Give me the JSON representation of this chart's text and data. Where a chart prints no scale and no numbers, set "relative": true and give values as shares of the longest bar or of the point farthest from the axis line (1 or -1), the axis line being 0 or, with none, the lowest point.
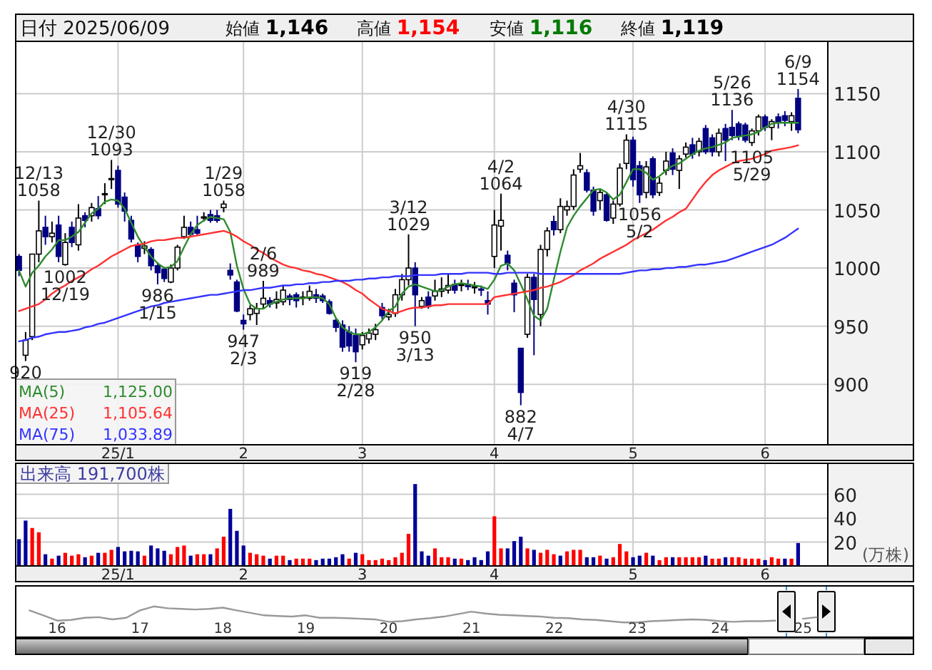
{
  "chart_data": [
    {
      "type": "candlestick",
      "title": "日付 2025/06/09",
      "categories": [
        null,
        null,
        null,
        null,
        null,
        null,
        null,
        null,
        null,
        null,
        null,
        null,
        null,
        null,
        null,
        "25/1",
        null,
        null,
        null,
        null,
        null,
        null,
        null,
        null,
        null,
        null,
        null,
        null,
        null,
        null,
        null,
        null,
        null,
        null,
        "2",
        null,
        null,
        null,
        null,
        null,
        null,
        null,
        null,
        null,
        null,
        null,
        null,
        null,
        null,
        null,
        null,
        null,
        "3",
        null,
        null,
        null,
        null,
        null,
        null,
        null,
        null,
        null,
        null,
        null,
        null,
        null,
        null,
        null,
        null,
        null,
        null,
        null,
        "4",
        null,
        null,
        null,
        null,
        null,
        null,
        null,
        null,
        null,
        null,
        null,
        null,
        null,
        null,
        null,
        null,
        null,
        null,
        null,
        null,
        "5",
        null,
        null,
        null,
        null,
        null,
        null,
        null,
        null,
        null,
        null,
        null,
        null,
        null,
        null,
        null,
        null,
        null,
        null,
        null,
        "6",
        null,
        null,
        null,
        null,
        null,
        null,
        null,
        null,
        null
      ],
      "ohlc": [
        [
          1010,
          1012,
          993,
          998
        ],
        [
          925,
          945,
          920,
          938
        ],
        [
          941,
          1012,
          938,
          1012
        ],
        [
          1012,
          1058,
          1005,
          1032
        ],
        [
          1035,
          1045,
          1020,
          1027
        ],
        [
          1027,
          1040,
          1022,
          1030
        ],
        [
          1037,
          1045,
          1005,
          1010
        ],
        [
          1003,
          1030,
          1002,
          1022
        ],
        [
          1035,
          1040,
          1018,
          1022
        ],
        [
          1020,
          1055,
          1015,
          1043
        ],
        [
          1045,
          1048,
          1035,
          1041
        ],
        [
          1045,
          1056,
          1040,
          1052
        ],
        [
          1051,
          1062,
          1042,
          1045
        ],
        [
          1063,
          1073,
          1055,
          1064
        ],
        [
          1076,
          1093,
          1068,
          1077
        ],
        [
          1084,
          1088,
          1052,
          1055
        ],
        [
          1061,
          1065,
          1040,
          1049
        ],
        [
          1041,
          1045,
          1022,
          1025
        ],
        [
          1020,
          1022,
          1005,
          1010
        ],
        [
          1017,
          1023,
          1012,
          1019
        ],
        [
          1016,
          1018,
          998,
          1002
        ],
        [
          1002,
          1005,
          986,
          996
        ],
        [
          999,
          1001,
          988,
          991
        ],
        [
          988,
          1003,
          987,
          1000
        ],
        [
          1000,
          1020,
          998,
          1018
        ],
        [
          1027,
          1045,
          1025,
          1035
        ],
        [
          1035,
          1040,
          1027,
          1029
        ],
        [
          1033,
          1045,
          1028,
          1030
        ],
        [
          1043,
          1048,
          1040,
          1044
        ],
        [
          1046,
          1050,
          1039,
          1041
        ],
        [
          1045,
          1050,
          1039,
          1041
        ],
        [
          1052,
          1058,
          1048,
          1055
        ],
        [
          998,
          1004,
          990,
          994
        ],
        [
          988,
          990,
          962,
          963
        ],
        [
          955,
          960,
          947,
          952
        ],
        [
          960,
          968,
          955,
          965
        ],
        [
          961,
          970,
          951,
          965
        ],
        [
          969,
          989,
          965,
          974
        ],
        [
          972,
          975,
          966,
          969
        ],
        [
          970,
          980,
          965,
          973
        ],
        [
          971,
          985,
          968,
          981
        ],
        [
          976,
          978,
          968,
          973
        ],
        [
          977,
          979,
          966,
          972
        ],
        [
          974,
          980,
          968,
          975
        ],
        [
          974,
          985,
          972,
          980
        ],
        [
          977,
          982,
          970,
          974
        ],
        [
          976,
          978,
          970,
          972
        ],
        [
          971,
          973,
          960,
          961
        ],
        [
          955,
          957,
          945,
          949
        ],
        [
          951,
          955,
          928,
          932
        ],
        [
          945,
          950,
          928,
          933
        ],
        [
          942,
          948,
          919,
          928
        ],
        [
          934,
          945,
          930,
          942
        ],
        [
          939,
          948,
          935,
          944
        ],
        [
          943,
          952,
          938,
          947
        ],
        [
          966,
          970,
          956,
          959
        ],
        [
          958,
          965,
          955,
          960
        ],
        [
          961,
          982,
          958,
          977
        ],
        [
          977,
          995,
          972,
          990
        ],
        [
          990,
          1029,
          985,
          1000
        ],
        [
          1000,
          1005,
          950,
          977
        ],
        [
          967,
          975,
          965,
          972
        ],
        [
          975,
          980,
          965,
          967
        ],
        [
          976,
          990,
          972,
          980
        ],
        [
          980,
          992,
          975,
          982
        ],
        [
          981,
          995,
          978,
          985
        ],
        [
          986,
          990,
          978,
          981
        ],
        [
          985,
          990,
          980,
          986
        ],
        [
          986,
          990,
          981,
          984
        ],
        [
          984,
          988,
          978,
          984
        ],
        [
          982,
          985,
          976,
          981
        ],
        [
          972,
          980,
          960,
          969
        ],
        [
          1010,
          1050,
          1000,
          1037
        ],
        [
          1036,
          1064,
          1015,
          1041
        ],
        [
          1011,
          1015,
          998,
          1004
        ],
        [
          987,
          990,
          962,
          977
        ],
        [
          931,
          931,
          882,
          893
        ],
        [
          943,
          995,
          940,
          992
        ],
        [
          992,
          995,
          925,
          973
        ],
        [
          960,
          1020,
          950,
          1016
        ],
        [
          1016,
          1035,
          1010,
          1032
        ],
        [
          1040,
          1045,
          1028,
          1033
        ],
        [
          1033,
          1060,
          1030,
          1053
        ],
        [
          1050,
          1058,
          1045,
          1053
        ],
        [
          1053,
          1085,
          1050,
          1080
        ],
        [
          1085,
          1099,
          1082,
          1088
        ],
        [
          1082,
          1085,
          1065,
          1067
        ],
        [
          1067,
          1070,
          1045,
          1049
        ],
        [
          1058,
          1068,
          1050,
          1065
        ],
        [
          1063,
          1065,
          1040,
          1041
        ],
        [
          1043,
          1058,
          1038,
          1055
        ],
        [
          1055,
          1090,
          1053,
          1086
        ],
        [
          1090,
          1115,
          1085,
          1110
        ],
        [
          1110,
          1113,
          1070,
          1076
        ],
        [
          1088,
          1092,
          1056,
          1063
        ],
        [
          1065,
          1092,
          1060,
          1087
        ],
        [
          1094,
          1096,
          1060,
          1063
        ],
        [
          1065,
          1078,
          1062,
          1073
        ],
        [
          1084,
          1100,
          1080,
          1092
        ],
        [
          1099,
          1103,
          1080,
          1085
        ],
        [
          1084,
          1097,
          1068,
          1094
        ],
        [
          1098,
          1108,
          1095,
          1104
        ],
        [
          1106,
          1112,
          1094,
          1098
        ],
        [
          1100,
          1112,
          1096,
          1109
        ],
        [
          1120,
          1123,
          1098,
          1100
        ],
        [
          1112,
          1115,
          1096,
          1100
        ],
        [
          1100,
          1120,
          1096,
          1116
        ],
        [
          1120,
          1124,
          1092,
          1110
        ],
        [
          1121,
          1136,
          1110,
          1114
        ],
        [
          1124,
          1126,
          1110,
          1114
        ],
        [
          1123,
          1125,
          1108,
          1110
        ],
        [
          1108,
          1120,
          1105,
          1118
        ],
        [
          1118,
          1132,
          1114,
          1130
        ],
        [
          1130,
          1132,
          1118,
          1121
        ],
        [
          1121,
          1128,
          1110,
          1126
        ],
        [
          1130,
          1133,
          1120,
          1125
        ],
        [
          1131,
          1135,
          1122,
          1127
        ],
        [
          1126,
          1134,
          1118,
          1131
        ],
        [
          1146,
          1154,
          1116,
          1119
        ],
        null,
        null,
        null,
        null
      ],
      "series": [
        {
          "type": "line",
          "name": "MA(5) 1,125.00",
          "color": "#2e8b2e",
          "values": [
            998,
            984,
            996,
            1002,
            1010,
            1016,
            1024,
            1024,
            1027,
            1031,
            1039,
            1047,
            1051,
            1057,
            1059,
            1058,
            1051,
            1039,
            1027,
            1018,
            1010,
            1004,
            1000,
            1001,
            1006,
            1018,
            1029,
            1037,
            1041,
            1044,
            1043,
            1042,
            1031,
            1002,
            982,
            969,
            965,
            965,
            969,
            971,
            973,
            974,
            974,
            974,
            975,
            975,
            974,
            969,
            957,
            949,
            945,
            943,
            943,
            945,
            949,
            955,
            963,
            967,
            978,
            984,
            986,
            984,
            982,
            980,
            981,
            984,
            986,
            987,
            986,
            985,
            984,
            982,
            990,
            1002,
            1004,
            998,
            986,
            973,
            959,
            955,
            965,
            990,
            1014,
            1035,
            1045,
            1053,
            1060,
            1067,
            1068,
            1065,
            1059,
            1063,
            1074,
            1085,
            1085,
            1082,
            1076,
            1079,
            1084,
            1088,
            1090,
            1094,
            1098,
            1101,
            1103,
            1104,
            1106,
            1108,
            1112,
            1113,
            1114,
            1115,
            1117,
            1121,
            1124,
            1125,
            1125,
            1125,
            1125,
            null,
            null,
            null,
            null
          ]
        },
        {
          "type": "line",
          "name": "MA(25) 1,105.64",
          "color": "#ff3030",
          "values": [
            963,
            965,
            967,
            969,
            973,
            978,
            982,
            985,
            989,
            992,
            995,
            999,
            1002,
            1006,
            1010,
            1013,
            1016,
            1019,
            1020,
            1021,
            1023,
            1024,
            1024,
            1025,
            1026,
            1026,
            1027,
            1028,
            1029,
            1030,
            1031,
            1032,
            1030,
            1027,
            1023,
            1020,
            1016,
            1013,
            1009,
            1006,
            1003,
            1001,
            1000,
            998,
            997,
            995,
            994,
            992,
            990,
            988,
            985,
            981,
            978,
            973,
            969,
            965,
            963,
            961,
            963,
            965,
            966,
            966,
            967,
            968,
            968,
            969,
            969,
            969,
            969,
            969,
            969,
            969,
            975,
            976,
            977,
            978,
            979,
            980,
            981,
            983,
            984,
            986,
            988,
            991,
            994,
            998,
            1001,
            1004,
            1008,
            1011,
            1014,
            1017,
            1020,
            1024,
            1027,
            1030,
            1033,
            1037,
            1041,
            1044,
            1048,
            1051,
            1059,
            1067,
            1074,
            1080,
            1084,
            1087,
            1090,
            1092,
            1093,
            1094,
            1096,
            1098,
            1101,
            1102,
            1103,
            1104,
            1105.6,
            null,
            null,
            null,
            null
          ]
        },
        {
          "type": "line",
          "name": "MA(75) 1,033.89",
          "color": "#3333ff",
          "values": [
            937,
            938,
            940,
            941,
            943,
            944,
            945,
            945,
            946,
            947,
            949,
            950,
            952,
            953,
            955,
            957,
            959,
            961,
            963,
            965,
            967,
            968,
            970,
            971,
            972,
            973,
            974,
            975,
            976,
            977,
            977,
            978,
            979,
            980,
            981,
            981,
            982,
            983,
            983,
            984,
            985,
            985,
            986,
            986,
            987,
            987,
            988,
            988,
            989,
            989,
            989,
            990,
            990,
            991,
            991,
            992,
            992,
            993,
            993,
            993,
            994,
            994,
            994,
            994,
            995,
            995,
            995,
            995,
            996,
            996,
            996,
            996,
            995,
            995,
            996,
            996,
            996,
            996,
            996,
            995,
            995,
            995,
            995,
            995,
            995,
            995,
            995,
            995,
            995,
            995,
            995,
            995,
            996,
            997,
            998,
            998,
            999,
            999,
            1000,
            1000,
            1001,
            1001,
            1002,
            1003,
            1003,
            1004,
            1005,
            1006,
            1008,
            1010,
            1012,
            1014,
            1016,
            1018,
            1020,
            1023,
            1026,
            1030,
            1033.9,
            null,
            null,
            null,
            null
          ]
        }
      ],
      "ylim": [
        848,
        1195
      ],
      "yticks": [
        900,
        950,
        1000,
        1050,
        1100,
        1150
      ],
      "grid": true,
      "annotations": [
        "始値 1,146",
        "高値 1,154",
        "安値 1,116",
        "終値 1,119",
        {
          "text": "920",
          "y": 920
        },
        {
          "text": "12/13\n1058",
          "y": 1058
        },
        {
          "text": "1002\n12/19",
          "y": 1002
        },
        {
          "text": "12/30\n1093",
          "y": 1093
        },
        {
          "text": "986\n1/15",
          "y": 986
        },
        {
          "text": "1/29\n1058",
          "y": 1058
        },
        {
          "text": "947\n2/3",
          "y": 947
        },
        {
          "text": "2/6\n989",
          "y": 989
        },
        {
          "text": "919\n2/28",
          "y": 919
        },
        {
          "text": "3/12\n1029",
          "y": 1029
        },
        {
          "text": "950\n3/13",
          "y": 950
        },
        {
          "text": "4/2\n1064",
          "y": 1064
        },
        {
          "text": "882\n4/7",
          "y": 882
        },
        {
          "text": "4/30\n1115",
          "y": 1115
        },
        {
          "text": "1056\n5/2",
          "y": 1056
        },
        {
          "text": "5/26\n1136",
          "y": 1136
        },
        {
          "text": "1105\n5/29",
          "y": 1105
        },
        {
          "text": "6/9\n1154",
          "y": 1154
        }
      ]
    },
    {
      "type": "bar",
      "categories": [
        null,
        null,
        null,
        null,
        null,
        null,
        null,
        null,
        null,
        null,
        null,
        null,
        null,
        null,
        null,
        "25/1",
        null,
        null,
        null,
        null,
        null,
        null,
        null,
        null,
        null,
        null,
        null,
        null,
        null,
        null,
        null,
        null,
        null,
        null,
        "2",
        null,
        null,
        null,
        null,
        null,
        null,
        null,
        null,
        null,
        null,
        null,
        null,
        null,
        null,
        null,
        null,
        null,
        "3",
        null,
        null,
        null,
        null,
        null,
        null,
        null,
        null,
        null,
        null,
        null,
        null,
        null,
        null,
        null,
        null,
        null,
        null,
        null,
        "4",
        null,
        null,
        null,
        null,
        null,
        null,
        null,
        null,
        null,
        null,
        null,
        null,
        null,
        null,
        null,
        null,
        null,
        null,
        null,
        null,
        "5",
        null,
        null,
        null,
        null,
        null,
        null,
        null,
        null,
        null,
        null,
        null,
        null,
        null,
        null,
        null,
        null,
        null,
        null,
        null,
        "6",
        null,
        null,
        null,
        null,
        null,
        null,
        null,
        null,
        null
      ],
      "series": [
        {
          "axis": "y2",
          "values": [
            22.4,
            38.0,
            31.8,
            28.2,
            9.8,
            6.1,
            8.6,
            11.0,
            8.6,
            9.8,
            7.3,
            8.6,
            11.0,
            11.0,
            13.5,
            15.9,
            12.2,
            12.7,
            12.2,
            8.6,
            17.1,
            14.7,
            12.7,
            9.8,
            15.9,
            17.1,
            8.6,
            9.8,
            9.8,
            9.8,
            14.7,
            24.5,
            47.8,
            29.4,
            17.1,
            11.0,
            9.8,
            8.6,
            6.1,
            8.6,
            8.6,
            4.9,
            6.1,
            6.1,
            6.1,
            4.9,
            6.1,
            6.1,
            7.3,
            9.8,
            6.1,
            11.0,
            9.8,
            4.9,
            4.9,
            6.1,
            4.9,
            7.3,
            11.0,
            26.9,
            68.6,
            12.2,
            8.6,
            14.7,
            7.3,
            7.3,
            6.1,
            6.1,
            4.9,
            7.3,
            4.9,
            12.2,
            41.6,
            14.7,
            14.7,
            20.8,
            24.5,
            14.7,
            13.5,
            11.0,
            13.5,
            9.8,
            8.6,
            12.2,
            13.5,
            13.5,
            7.3,
            7.3,
            8.6,
            6.1,
            7.3,
            18.4,
            12.2,
            7.3,
            8.6,
            11.0,
            8.6,
            4.9,
            7.3,
            7.3,
            7.3,
            7.3,
            7.3,
            7.3,
            8.6,
            6.1,
            6.1,
            7.3,
            7.3,
            7.3,
            6.1,
            6.1,
            6.1,
            4.9,
            7.3,
            6.1,
            6.1,
            6.1,
            19.2,
            null,
            null,
            null,
            null
          ],
          "colors": [
            "#000099",
            "#000099",
            "#ff0000",
            "#ff0000",
            "#000099",
            "#ff0000",
            "#000099",
            "#ff0000",
            "#ff0000",
            "#ff0000",
            "#000099",
            "#ff0000",
            "#000099",
            "#ff0000",
            "#ff0000",
            "#000099",
            "#000099",
            "#000099",
            "#000099",
            "#ff0000",
            "#000099",
            "#000099",
            "#000099",
            "#ff0000",
            "#ff0000",
            "#ff0000",
            "#000099",
            "#ff0000",
            "#ff0000",
            "#000099",
            "#ff0000",
            "#ff0000",
            "#000099",
            "#000099",
            "#000099",
            "#ff0000",
            "#ff0000",
            "#ff0000",
            "#000099",
            "#ff0000",
            "#ff0000",
            "#000099",
            "#ff0000",
            "#ff0000",
            "#ff0000",
            "#000099",
            "#000099",
            "#000099",
            "#000099",
            "#000099",
            "#ff0000",
            "#000099",
            "#ff0000",
            "#ff0000",
            "#ff0000",
            "#ff0000",
            "#ff0000",
            "#ff0000",
            "#ff0000",
            "#ff0000",
            "#000099",
            "#000099",
            "#000099",
            "#ff0000",
            "#ff0000",
            "#ff0000",
            "#000099",
            "#ff0000",
            "#000099",
            "#000099",
            "#000099",
            "#000099",
            "#ff0000",
            "#ff0000",
            "#000099",
            "#000099",
            "#000099",
            "#ff0000",
            "#000099",
            "#ff0000",
            "#ff0000",
            "#ff0000",
            "#000099",
            "#ff0000",
            "#ff0000",
            "#ff0000",
            "#000099",
            "#000099",
            "#ff0000",
            "#000099",
            "#ff0000",
            "#ff0000",
            "#ff0000",
            "#000099",
            "#000099",
            "#ff0000",
            "#000099",
            "#ff0000",
            "#ff0000",
            "#000099",
            "#ff0000",
            "#ff0000",
            "#ff0000",
            "#ff0000",
            "#000099",
            "#ff0000",
            "#ff0000",
            "#000099",
            "#ff0000",
            "#ff0000",
            "#ff0000",
            "#ff0000",
            "#ff0000",
            "#000099",
            "#ff0000",
            "#ff0000",
            "#000099",
            "#ff0000",
            "#000099",
            null,
            null,
            null,
            null
          ]
        }
      ],
      "y2lim": [
        0,
        86
      ],
      "y2ticks": [
        20,
        40,
        60
      ],
      "y2label": "(万株)",
      "grid": true,
      "annotations": [
        "出来高 191,700株"
      ]
    },
    {
      "type": "line",
      "relative": true,
      "categories": [
        null,
        null,
        "16",
        null,
        null,
        null,
        null,
        null,
        "17",
        null,
        null,
        null,
        null,
        null,
        "18",
        null,
        null,
        null,
        null,
        null,
        "19",
        null,
        null,
        null,
        null,
        null,
        "20",
        null,
        null,
        null,
        null,
        null,
        "21",
        null,
        null,
        null,
        null,
        null,
        "22",
        null,
        null,
        null,
        null,
        null,
        "23",
        null,
        null,
        null,
        null,
        null,
        "24",
        null,
        null,
        null,
        null,
        null,
        "25",
        null,
        null
      ],
      "series": [
        {
          "color": "#999999",
          "values": [
            0.87,
            0.71,
            0.54,
            0.56,
            0.63,
            0.65,
            0.58,
            0.63,
            0.87,
            1.0,
            0.94,
            0.92,
            0.9,
            0.92,
            0.96,
            0.87,
            0.79,
            0.71,
            0.69,
            0.67,
            0.71,
            0.63,
            0.63,
            0.62,
            0.6,
            0.58,
            0.5,
            0.52,
            0.58,
            0.62,
            0.67,
            0.75,
            0.83,
            0.77,
            0.73,
            0.71,
            0.69,
            0.67,
            0.63,
            0.62,
            0.58,
            0.56,
            0.52,
            0.48,
            0.48,
            0.52,
            0.54,
            0.56,
            0.58,
            0.56,
            0.52,
            0.5,
            0.52,
            0.52,
            0.54,
            null,
            0.6,
            0.65,
            null
          ]
        }
      ]
    }
  ]
}
